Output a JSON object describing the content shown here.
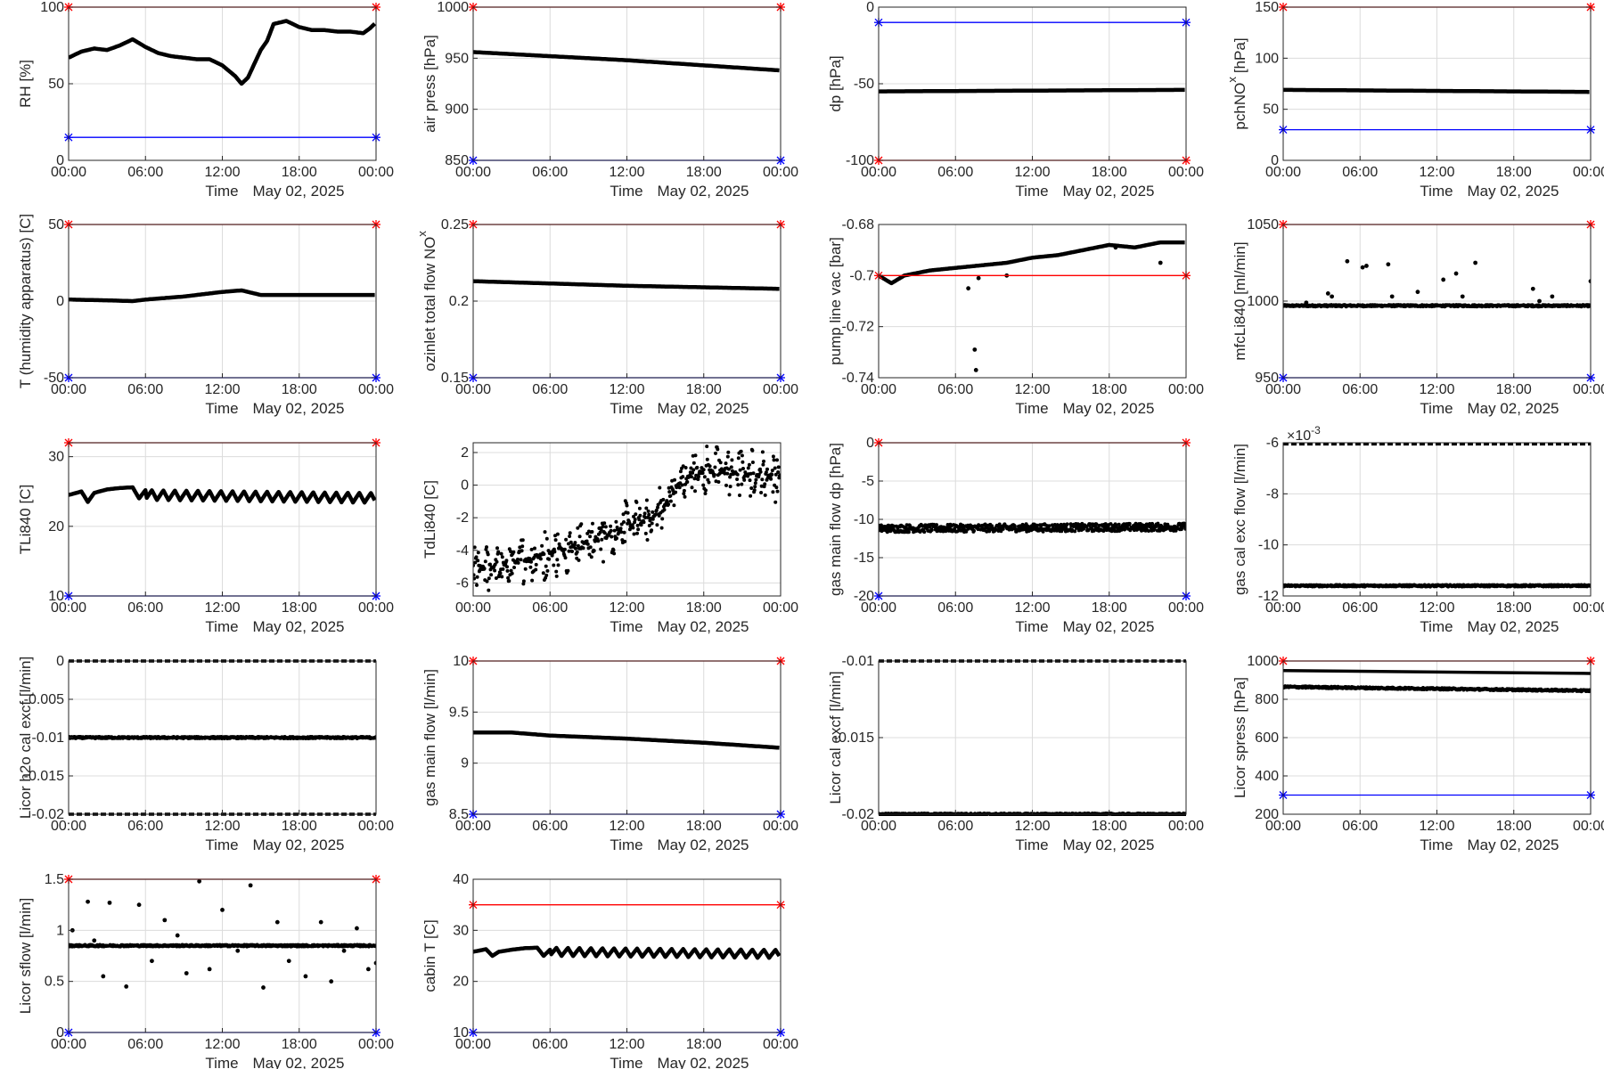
{
  "figure": {
    "xlabel": "Time",
    "date_label": "May 02, 2025"
  },
  "colors": {
    "upper_limit": "#ff0000",
    "lower_limit": "#0000ff",
    "data": "#000000",
    "grid": "#dcdcdc",
    "axis": "#262626"
  },
  "xaxis": {
    "range": [
      "00:00",
      "24:00"
    ],
    "ticks": [
      "00:00",
      "06:00",
      "12:00",
      "18:00",
      "00:00"
    ]
  },
  "chart_data": [
    {
      "type": "line",
      "ylabel": "RH [%]",
      "ylim": [
        0,
        100
      ],
      "yticks": [
        "0",
        "50",
        "100"
      ],
      "upper_limit": 100,
      "lower_limit": 15,
      "grid": true,
      "x_hours": [
        0,
        1,
        2,
        3,
        4,
        5,
        6,
        7,
        8,
        9,
        10,
        11,
        12,
        13,
        13.5,
        14,
        15,
        15.5,
        16,
        17,
        18,
        19,
        20,
        21,
        22,
        23,
        23.5,
        24
      ],
      "values": [
        67,
        71,
        73,
        72,
        75,
        79,
        74,
        70,
        68,
        67,
        66,
        66,
        62,
        55,
        50,
        54,
        72,
        78,
        89,
        91,
        87,
        85,
        85,
        84,
        84,
        83,
        86,
        90
      ]
    },
    {
      "type": "line",
      "ylabel": "air press [hPa]",
      "ylim": [
        850,
        1000
      ],
      "yticks": [
        "850",
        "900",
        "950",
        "1000"
      ],
      "upper_limit": 1000,
      "lower_limit": 850,
      "grid": true,
      "x_hours": [
        0,
        6,
        12,
        18,
        24
      ],
      "values": [
        956,
        952,
        948,
        943,
        938
      ]
    },
    {
      "type": "line",
      "ylabel": "dp [hPa]",
      "ylim": [
        -100,
        0
      ],
      "yticks": [
        "-100",
        "-50",
        "0"
      ],
      "upper_limit": -100,
      "lower_limit": -10,
      "grid": true,
      "x_hours": [
        0,
        24
      ],
      "values": [
        -55,
        -54
      ]
    },
    {
      "type": "line",
      "ylabel": "pchNO",
      "ylabel_sub": "x",
      "ylabel_suffix": "[hPa]",
      "ylim": [
        0,
        150
      ],
      "yticks": [
        "0",
        "50",
        "100",
        "150"
      ],
      "upper_limit": 150,
      "lower_limit": 30,
      "grid": true,
      "x_hours": [
        0,
        12,
        24
      ],
      "values": [
        69,
        68,
        67
      ]
    },
    {
      "type": "line",
      "ylabel": "T (humidity apparatus) [C]",
      "ylim": [
        -50,
        50
      ],
      "yticks": [
        "-50",
        "0",
        "50"
      ],
      "upper_limit": 50,
      "lower_limit": -50,
      "grid": true,
      "x_hours": [
        0,
        3,
        5,
        6,
        9,
        12,
        13.5,
        15,
        18,
        24
      ],
      "values": [
        1,
        0.5,
        0,
        1,
        3,
        6,
        7,
        4,
        4,
        4
      ]
    },
    {
      "type": "line",
      "ylabel": "ozinlet total flow NO",
      "ylabel_sub": "x",
      "ylim": [
        0.15,
        0.25
      ],
      "yticks": [
        "0.15",
        "0.2",
        "0.25"
      ],
      "upper_limit": 0.25,
      "lower_limit": 0.15,
      "grid": true,
      "x_hours": [
        0,
        12,
        24
      ],
      "values": [
        0.213,
        0.21,
        0.208
      ]
    },
    {
      "type": "line",
      "ylabel": "pump line vac [bar]",
      "ylim": [
        -0.74,
        -0.68
      ],
      "yticks": [
        "-0.74",
        "-0.72",
        "-0.7",
        "-0.68"
      ],
      "upper_limit": -0.7,
      "grid": true,
      "x_hours": [
        0,
        1,
        2,
        4,
        6,
        8,
        10,
        12,
        14,
        16,
        18,
        20,
        22,
        24
      ],
      "values": [
        -0.7,
        -0.703,
        -0.7,
        -0.698,
        -0.697,
        -0.696,
        -0.695,
        -0.693,
        -0.692,
        -0.69,
        -0.688,
        -0.689,
        -0.687,
        -0.687
      ],
      "outliers": [
        [
          7.6,
          -0.737
        ],
        [
          7.5,
          -0.729
        ],
        [
          7,
          -0.705
        ],
        [
          7.8,
          -0.701
        ],
        [
          10,
          -0.7
        ],
        [
          18.5,
          -0.689
        ],
        [
          22,
          -0.695
        ]
      ]
    },
    {
      "type": "scatter",
      "ylabel": "mfcLi840 [ml/min]",
      "ylim": [
        950,
        1050
      ],
      "yticks": [
        "950",
        "1000",
        "1050"
      ],
      "upper_limit": 1050,
      "lower_limit": 950,
      "grid": true,
      "x_hours": [
        0,
        24
      ],
      "values": [
        997,
        997
      ],
      "outliers": [
        [
          1.8,
          999
        ],
        [
          3.5,
          1005
        ],
        [
          3.8,
          1003
        ],
        [
          5,
          1026
        ],
        [
          6.2,
          1022
        ],
        [
          6.5,
          1023
        ],
        [
          8.2,
          1024
        ],
        [
          8.5,
          1003
        ],
        [
          10.5,
          1006
        ],
        [
          12.5,
          1014
        ],
        [
          13.5,
          1018
        ],
        [
          14,
          1003
        ],
        [
          15,
          1025
        ],
        [
          19.5,
          1008
        ],
        [
          20,
          1000
        ],
        [
          21,
          1003
        ],
        [
          24,
          1013
        ]
      ]
    },
    {
      "type": "line",
      "ylabel": "TLi840 [C]",
      "ylim": [
        10,
        32
      ],
      "yticks": [
        "10",
        "20",
        "30"
      ],
      "upper_limit": 32,
      "lower_limit": 10,
      "grid": true,
      "x_hours": [
        0,
        1,
        1.5,
        2,
        3,
        4,
        5,
        5.5,
        6,
        24
      ],
      "values": [
        24.5,
        25,
        23.5,
        24.8,
        25.3,
        25.5,
        25.6,
        24,
        25.2,
        24.5
      ],
      "sawtooth": {
        "start": 6,
        "period": 0.9,
        "low": 23.8,
        "high": 25.2
      }
    },
    {
      "type": "scatter",
      "ylabel": "TdLi840 [C]",
      "ylim": [
        -6.8,
        2.6
      ],
      "yticks": [
        "-6",
        "-4",
        "-2",
        "0",
        "2"
      ],
      "grid": true,
      "x_hours": [
        0,
        2,
        4,
        6,
        8,
        10,
        12,
        14,
        15,
        16,
        17,
        18,
        20,
        22,
        24
      ],
      "values": [
        -5.2,
        -5,
        -4.6,
        -4.2,
        -3.7,
        -3.2,
        -2.6,
        -2,
        -1.2,
        0,
        0.6,
        0.9,
        0.8,
        0.6,
        0.6
      ]
    },
    {
      "type": "scatter",
      "ylabel": "gas main flow dp [hPa]",
      "ylim": [
        -20,
        0
      ],
      "yticks": [
        "-20",
        "-15",
        "-10",
        "-5",
        "0"
      ],
      "upper_limit": 0,
      "lower_limit": -20,
      "grid": true,
      "x_hours": [
        0,
        24
      ],
      "values": [
        -11.2,
        -11
      ]
    },
    {
      "type": "scatter",
      "ylabel": "gas cal exc flow [l/min]",
      "ylim": [
        -12,
        -6
      ],
      "yticks": [
        "-12",
        "-10",
        "-8",
        "-6"
      ],
      "exponent_label": "×10",
      "exponent_power": "-3",
      "grid": true,
      "x_hours": [
        0,
        24
      ],
      "values": [
        -11.6,
        -11.6
      ],
      "levels": [
        -6.05,
        -11.6
      ]
    },
    {
      "type": "scatter",
      "ylabel": "Licor h2o cal excf [l/min]",
      "ylim": [
        -0.02,
        0
      ],
      "yticks": [
        "-0.02",
        "-0.015",
        "-0.01",
        "-0.005",
        "0"
      ],
      "grid": true,
      "x_hours": [
        0,
        24
      ],
      "values": [
        -0.01,
        -0.01
      ],
      "levels": [
        0,
        -0.01,
        -0.02
      ]
    },
    {
      "type": "line",
      "ylabel": "gas main flow [l/min]",
      "ylim": [
        8.5,
        10
      ],
      "yticks": [
        "8.5",
        "9",
        "9.5",
        "10"
      ],
      "upper_limit": 10,
      "lower_limit": 8.5,
      "grid": true,
      "x_hours": [
        0,
        3,
        6,
        12,
        18,
        24
      ],
      "values": [
        9.3,
        9.3,
        9.27,
        9.24,
        9.2,
        9.15
      ]
    },
    {
      "type": "scatter",
      "ylabel": "Licor cal excf [l/min]",
      "ylim": [
        -0.02,
        -0.01
      ],
      "yticks": [
        "-0.02",
        "-0.015",
        "-0.01"
      ],
      "grid": true,
      "x_hours": [
        0,
        24
      ],
      "values": [
        -0.02,
        -0.02
      ],
      "levels": [
        -0.01,
        -0.02
      ]
    },
    {
      "type": "scatter",
      "ylabel": "Licor spress [hPa]",
      "ylim": [
        200,
        1000
      ],
      "yticks": [
        "200",
        "400",
        "600",
        "800",
        "1000"
      ],
      "upper_limit": 1000,
      "lower_limit": 300,
      "grid": true,
      "x_hours": [
        0,
        24
      ],
      "values": [
        865,
        845
      ],
      "levels_line": [
        [
          0,
          950
        ],
        [
          24,
          935
        ]
      ]
    },
    {
      "type": "scatter",
      "ylabel": "Licor sflow [l/min]",
      "ylim": [
        0,
        1.5
      ],
      "yticks": [
        "0",
        "0.5",
        "1",
        "1.5"
      ],
      "upper_limit": 1.5,
      "lower_limit": 0,
      "grid": true,
      "x_hours": [
        0,
        24
      ],
      "values": [
        0.85,
        0.85
      ],
      "outliers": [
        [
          0.3,
          1
        ],
        [
          1.5,
          1.28
        ],
        [
          2,
          0.9
        ],
        [
          2.7,
          0.55
        ],
        [
          3.2,
          1.27
        ],
        [
          4.5,
          0.45
        ],
        [
          5.5,
          1.25
        ],
        [
          6.5,
          0.7
        ],
        [
          7.5,
          1.1
        ],
        [
          8.5,
          0.95
        ],
        [
          9.2,
          0.58
        ],
        [
          10.2,
          1.48
        ],
        [
          11,
          0.62
        ],
        [
          12,
          1.2
        ],
        [
          13.2,
          0.8
        ],
        [
          14.2,
          1.44
        ],
        [
          15.2,
          0.44
        ],
        [
          16.3,
          1.08
        ],
        [
          17.2,
          0.7
        ],
        [
          18.5,
          0.55
        ],
        [
          19.7,
          1.08
        ],
        [
          20.5,
          0.5
        ],
        [
          21.5,
          0.8
        ],
        [
          22.5,
          1.02
        ],
        [
          23.4,
          0.62
        ],
        [
          24,
          0.68
        ]
      ]
    },
    {
      "type": "line",
      "ylabel": "cabin T [C]",
      "ylim": [
        10,
        40
      ],
      "yticks": [
        "10",
        "20",
        "30",
        "40"
      ],
      "upper_limit": 35,
      "lower_limit": 10,
      "grid": true,
      "x_hours": [
        0,
        1,
        1.5,
        2,
        3,
        4,
        5,
        5.5,
        6,
        24
      ],
      "values": [
        25.8,
        26.3,
        25,
        25.8,
        26.2,
        26.5,
        26.6,
        25,
        26.2,
        25.5
      ],
      "sawtooth": {
        "start": 6,
        "period": 0.9,
        "low": 25,
        "high": 26.6
      }
    }
  ]
}
